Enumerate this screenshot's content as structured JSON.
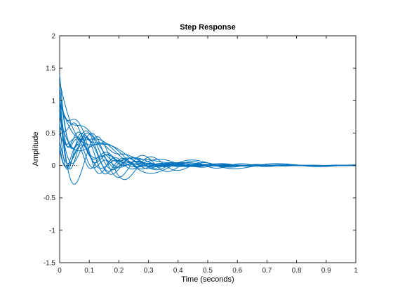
{
  "chart_data": {
    "type": "line",
    "title": "Step Response",
    "xlabel": "Time (seconds)",
    "ylabel": "Amplitude",
    "xlim": [
      0,
      1
    ],
    "ylim": [
      -1.5,
      2
    ],
    "xticks": [
      "0",
      "0.1",
      "0.2",
      "0.3",
      "0.4",
      "0.5",
      "0.6",
      "0.7",
      "0.8",
      "0.9",
      "1"
    ],
    "yticks": [
      "2",
      "1.5",
      "1",
      "0.5",
      "0",
      "-0.5",
      "-1",
      "-1.5"
    ],
    "grid": false,
    "line_color": "#0072BD",
    "reference_line": {
      "y": 0,
      "style": "dotted",
      "x_to": 0.065
    },
    "series_params": [
      {
        "y0": 1.0,
        "tau": 0.045,
        "amp": 0.85,
        "freq": 5.6,
        "damp": 6.0,
        "phase": 0.0
      },
      {
        "y0": 1.0,
        "tau": 0.06,
        "amp": 0.6,
        "freq": 6.0,
        "damp": 5.0,
        "phase": 0.3
      },
      {
        "y0": 0.9,
        "tau": 0.05,
        "amp": 0.7,
        "freq": 8.0,
        "damp": 9.0,
        "phase": 0.0
      },
      {
        "y0": 1.1,
        "tau": 0.07,
        "amp": 0.4,
        "freq": 3.5,
        "damp": 3.5,
        "phase": 1.0
      },
      {
        "y0": 0.3,
        "tau": 0.08,
        "amp": 0.3,
        "freq": 12.0,
        "damp": 8.0,
        "phase": 0.0
      },
      {
        "y0": 0.8,
        "tau": 0.05,
        "amp": 0.7,
        "freq": 9.0,
        "damp": 10.0,
        "phase": 0.2
      },
      {
        "y0": 1.2,
        "tau": 0.065,
        "amp": 0.5,
        "freq": 7.0,
        "damp": 7.0,
        "phase": 0.0
      },
      {
        "y0": 0.6,
        "tau": 0.1,
        "amp": 0.2,
        "freq": 10.0,
        "damp": 9.0,
        "phase": 0.5
      },
      {
        "y0": 1.3,
        "tau": 0.09,
        "amp": 0.3,
        "freq": 4.0,
        "damp": 5.0,
        "phase": 0.0
      },
      {
        "y0": 1.1,
        "tau": 0.04,
        "amp": 0.4,
        "freq": 11.0,
        "damp": 12.0,
        "phase": 0.0
      },
      {
        "y0": 0.7,
        "tau": 0.06,
        "amp": 0.5,
        "freq": 6.5,
        "damp": 6.0,
        "phase": 0.7
      },
      {
        "y0": 1.0,
        "tau": 0.11,
        "amp": 0.2,
        "freq": 5.0,
        "damp": 4.0,
        "phase": 0.0
      },
      {
        "y0": 0.9,
        "tau": 0.08,
        "amp": 0.3,
        "freq": 9.5,
        "damp": 8.0,
        "phase": 1.2
      },
      {
        "y0": 1.4,
        "tau": 0.055,
        "amp": 0.6,
        "freq": 7.5,
        "damp": 8.0,
        "phase": 0.0
      },
      {
        "y0": 0.4,
        "tau": 0.07,
        "amp": 0.4,
        "freq": 8.5,
        "damp": 10.0,
        "phase": 0.4
      },
      {
        "y0": 1.0,
        "tau": 0.12,
        "amp": 0.15,
        "freq": 12.0,
        "damp": 10.0,
        "phase": 0.0
      },
      {
        "y0": 1.2,
        "tau": 0.09,
        "amp": 0.25,
        "freq": 6.0,
        "damp": 6.0,
        "phase": 0.9
      },
      {
        "y0": 0.8,
        "tau": 0.075,
        "amp": 0.35,
        "freq": 10.5,
        "damp": 9.0,
        "phase": 0.0
      }
    ]
  }
}
